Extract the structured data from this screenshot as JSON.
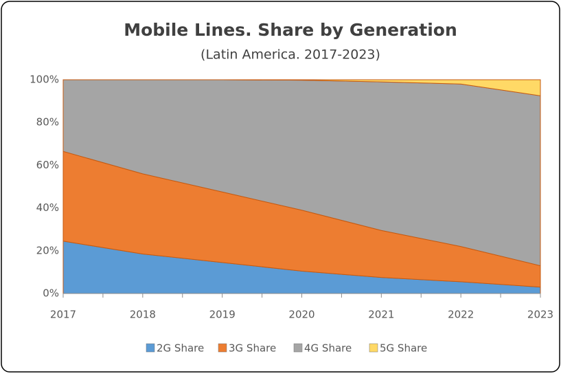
{
  "chart_data": {
    "type": "stacked_area",
    "title": "Mobile Lines. Share by Generation",
    "subtitle": "(Latin America. 2017-2023)",
    "categories": [
      "2017",
      "2018",
      "2019",
      "2020",
      "2021",
      "2022",
      "2023"
    ],
    "series": [
      {
        "name": "2G Share",
        "color": "#5b9bd5",
        "values": [
          24.5,
          18.5,
          14.5,
          10.5,
          7.5,
          5.5,
          3
        ]
      },
      {
        "name": "3G Share",
        "color": "#ed7d31",
        "values": [
          42,
          37.5,
          33,
          28.5,
          22,
          16.5,
          10
        ]
      },
      {
        "name": "4G Share",
        "color": "#a5a5a5",
        "values": [
          33.5,
          44,
          52.5,
          60.8,
          69.5,
          76,
          79.5
        ]
      },
      {
        "name": "5G Share",
        "color": "#ffd966",
        "values": [
          0,
          0,
          0,
          0.2,
          1,
          2,
          7.5
        ]
      }
    ],
    "ylim": [
      0,
      100
    ],
    "yticks": [
      {
        "value": 0,
        "label": "0%"
      },
      {
        "value": 20,
        "label": "20%"
      },
      {
        "value": 40,
        "label": "40%"
      },
      {
        "value": 60,
        "label": "60%"
      },
      {
        "value": 80,
        "label": "80%"
      },
      {
        "value": 100,
        "label": "100%"
      }
    ],
    "legend": "bottom"
  }
}
